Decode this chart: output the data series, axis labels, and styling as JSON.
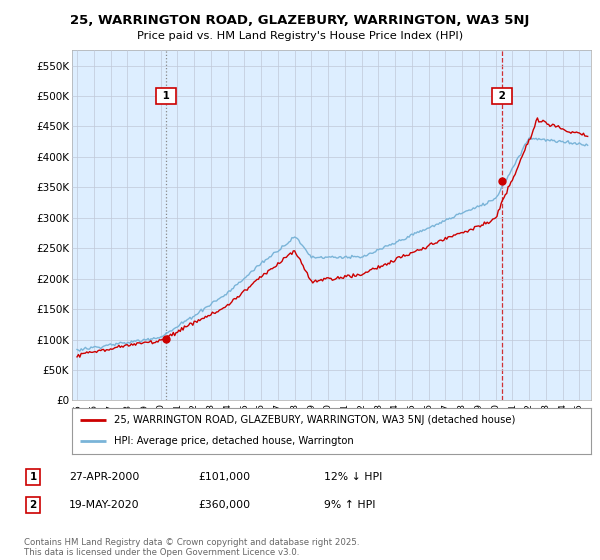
{
  "title1": "25, WARRINGTON ROAD, GLAZEBURY, WARRINGTON, WA3 5NJ",
  "title2": "Price paid vs. HM Land Registry's House Price Index (HPI)",
  "ylabel_ticks": [
    "£0",
    "£50K",
    "£100K",
    "£150K",
    "£200K",
    "£250K",
    "£300K",
    "£350K",
    "£400K",
    "£450K",
    "£500K",
    "£550K"
  ],
  "ytick_values": [
    0,
    50000,
    100000,
    150000,
    200000,
    250000,
    300000,
    350000,
    400000,
    450000,
    500000,
    550000
  ],
  "ylim": [
    0,
    575000
  ],
  "xlim_start": 1994.7,
  "xlim_end": 2025.7,
  "hpi_color": "#7ab4d8",
  "price_color": "#cc0000",
  "chart_bg": "#ddeeff",
  "sale1_date": 2000.32,
  "sale1_price": 101000,
  "sale2_date": 2020.38,
  "sale2_price": 360000,
  "legend_text1": "25, WARRINGTON ROAD, GLAZEBURY, WARRINGTON, WA3 5NJ (detached house)",
  "legend_text2": "HPI: Average price, detached house, Warrington",
  "note1_num": "1",
  "note1_date": "27-APR-2000",
  "note1_price": "£101,000",
  "note1_hpi": "12% ↓ HPI",
  "note2_num": "2",
  "note2_date": "19-MAY-2020",
  "note2_price": "£360,000",
  "note2_hpi": "9% ↑ HPI",
  "footer": "Contains HM Land Registry data © Crown copyright and database right 2025.\nThis data is licensed under the Open Government Licence v3.0.",
  "background_color": "#ffffff",
  "grid_color": "#c0c8d8"
}
